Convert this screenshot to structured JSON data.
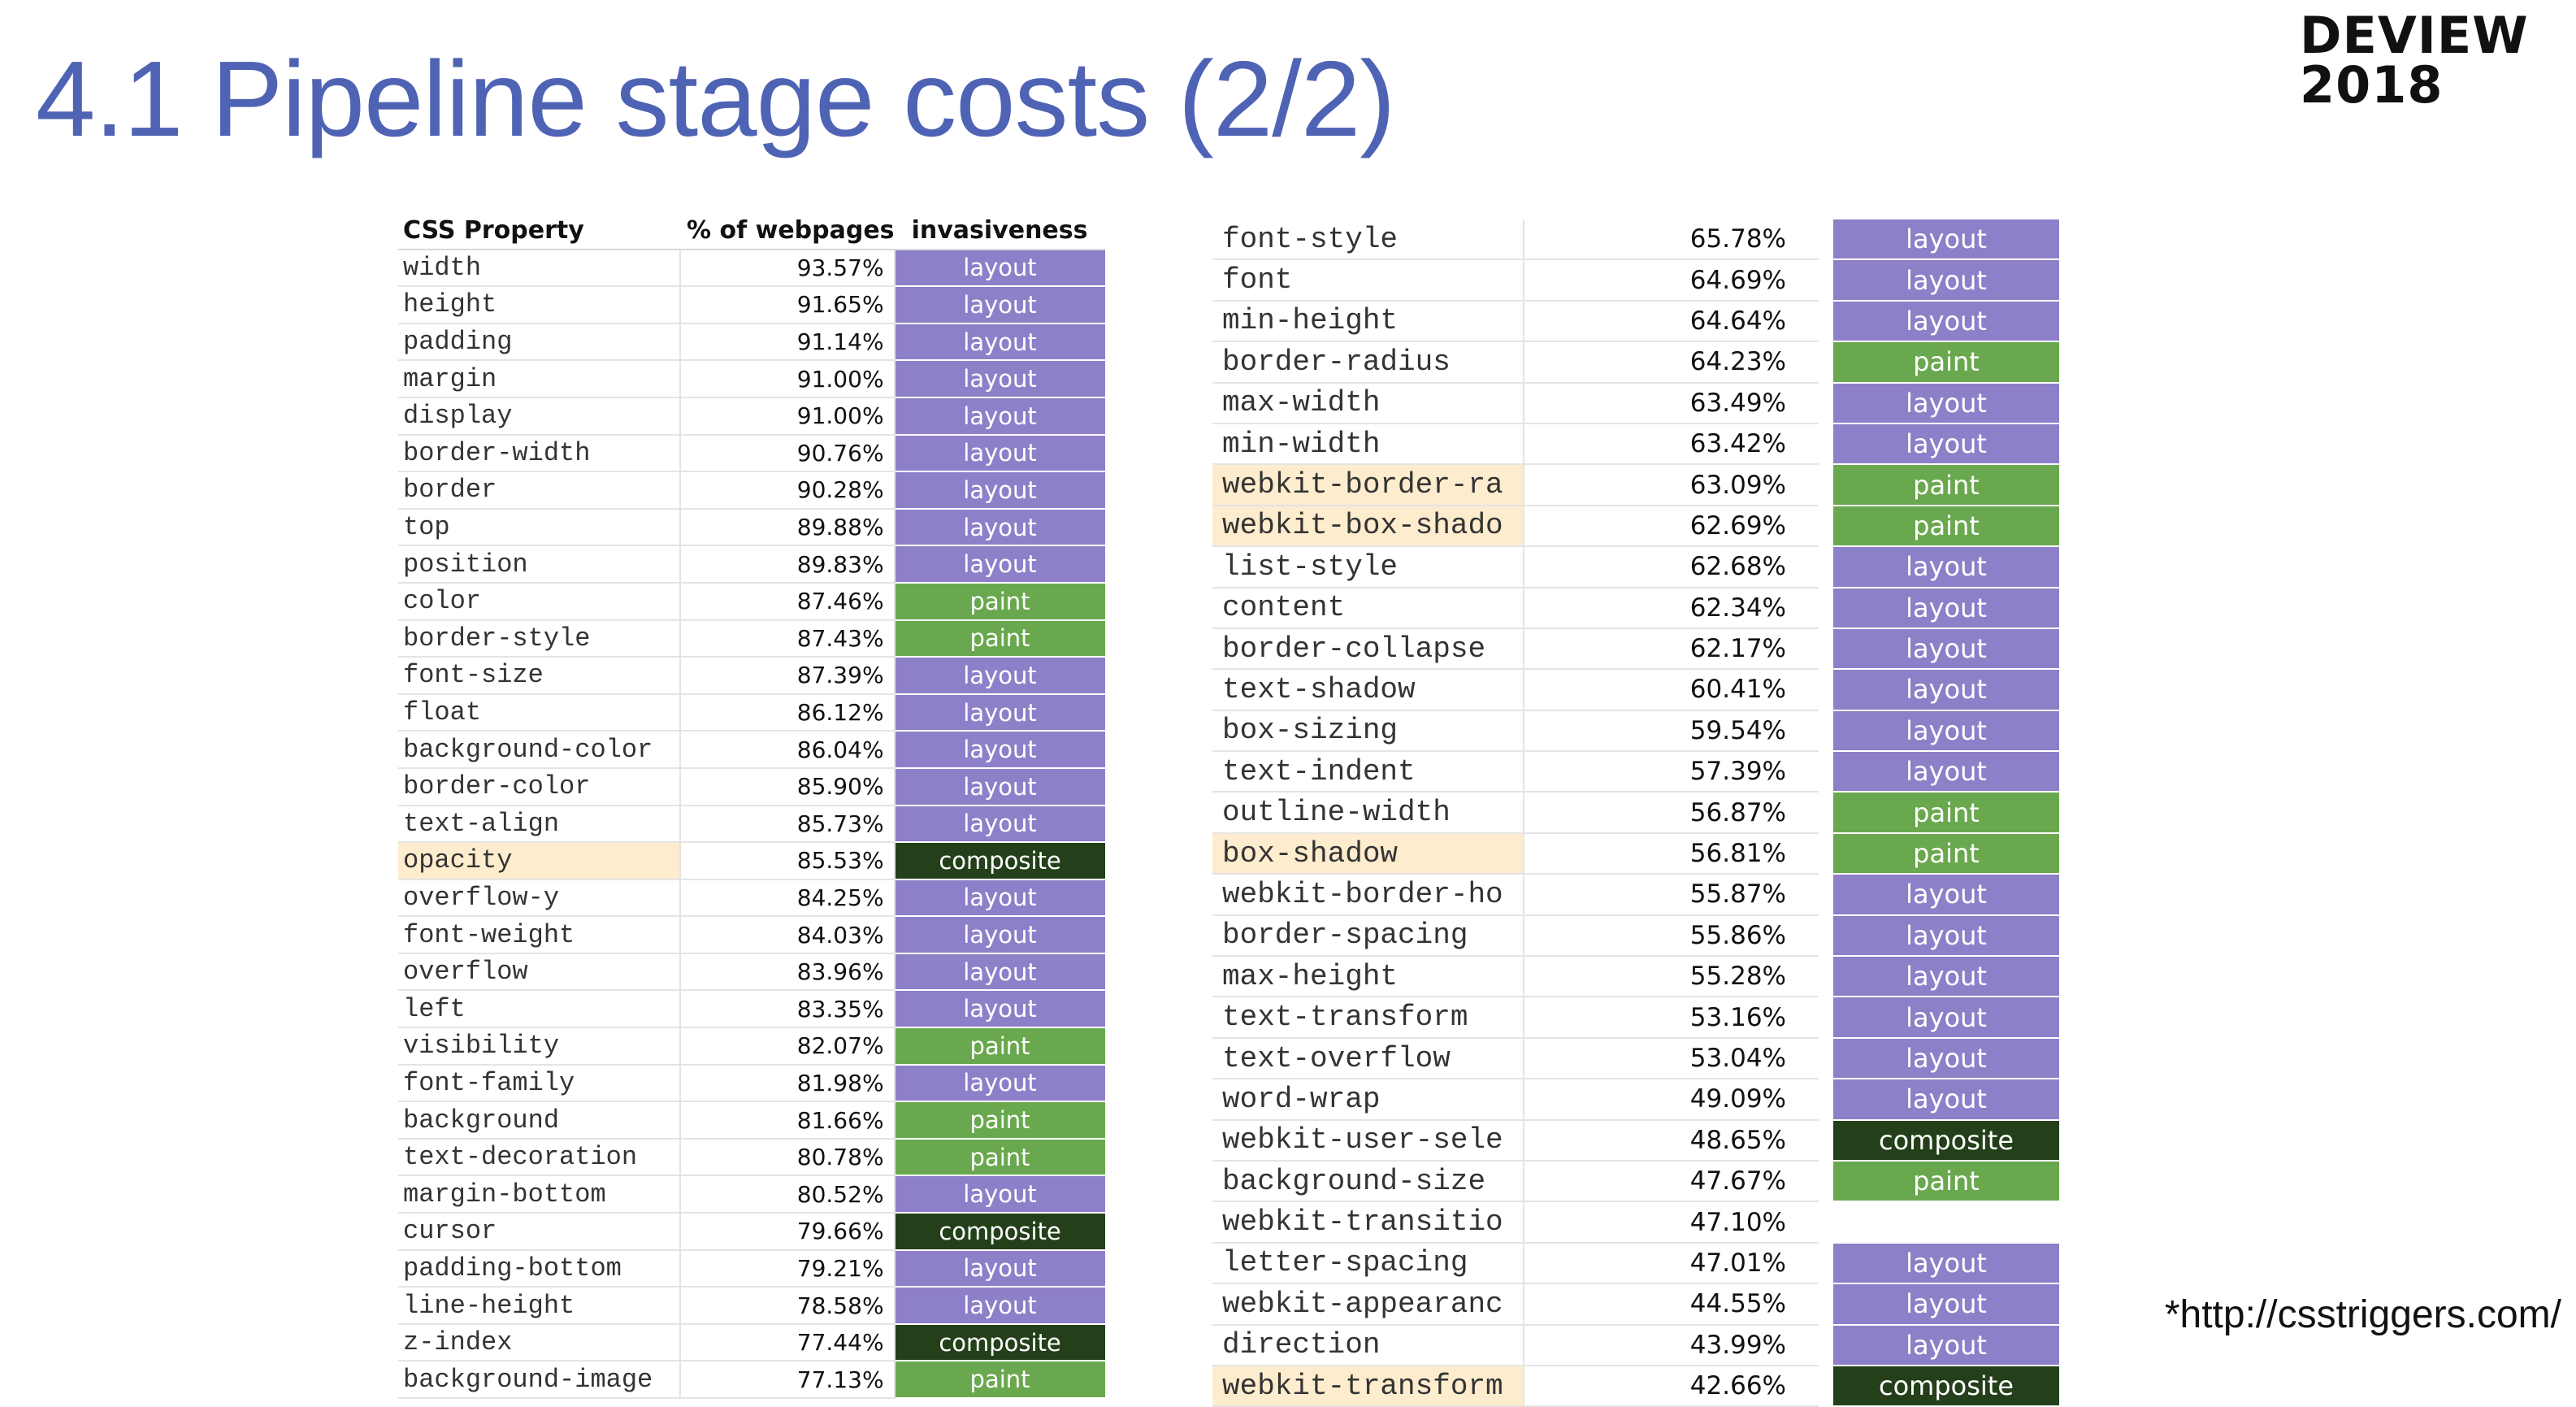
{
  "slide": {
    "title": "4.1 Pipeline stage costs (2/2)",
    "brand_line1": "DEVIEW",
    "brand_line2": "2018",
    "source": "*http://csstriggers.com/"
  },
  "colors": {
    "title": "#4f63b5",
    "layout": "#8e7fc9",
    "paint": "#6aa84f",
    "composite": "#24401a",
    "highlight": "#fdeccd"
  },
  "left_table": {
    "headers": [
      "CSS Property",
      "% of webpages",
      "invasiveness"
    ],
    "rows": [
      {
        "property": "width",
        "percent": "93.57%",
        "invasiveness": "layout"
      },
      {
        "property": "height",
        "percent": "91.65%",
        "invasiveness": "layout"
      },
      {
        "property": "padding",
        "percent": "91.14%",
        "invasiveness": "layout"
      },
      {
        "property": "margin",
        "percent": "91.00%",
        "invasiveness": "layout"
      },
      {
        "property": "display",
        "percent": "91.00%",
        "invasiveness": "layout"
      },
      {
        "property": "border-width",
        "percent": "90.76%",
        "invasiveness": "layout"
      },
      {
        "property": "border",
        "percent": "90.28%",
        "invasiveness": "layout"
      },
      {
        "property": "top",
        "percent": "89.88%",
        "invasiveness": "layout"
      },
      {
        "property": "position",
        "percent": "89.83%",
        "invasiveness": "layout"
      },
      {
        "property": "color",
        "percent": "87.46%",
        "invasiveness": "paint"
      },
      {
        "property": "border-style",
        "percent": "87.43%",
        "invasiveness": "paint"
      },
      {
        "property": "font-size",
        "percent": "87.39%",
        "invasiveness": "layout"
      },
      {
        "property": "float",
        "percent": "86.12%",
        "invasiveness": "layout"
      },
      {
        "property": "background-color",
        "percent": "86.04%",
        "invasiveness": "layout"
      },
      {
        "property": "border-color",
        "percent": "85.90%",
        "invasiveness": "layout"
      },
      {
        "property": "text-align",
        "percent": "85.73%",
        "invasiveness": "layout"
      },
      {
        "property": "opacity",
        "percent": "85.53%",
        "invasiveness": "composite",
        "highlight": true
      },
      {
        "property": "overflow-y",
        "percent": "84.25%",
        "invasiveness": "layout"
      },
      {
        "property": "font-weight",
        "percent": "84.03%",
        "invasiveness": "layout"
      },
      {
        "property": "overflow",
        "percent": "83.96%",
        "invasiveness": "layout"
      },
      {
        "property": "left",
        "percent": "83.35%",
        "invasiveness": "layout"
      },
      {
        "property": "visibility",
        "percent": "82.07%",
        "invasiveness": "paint"
      },
      {
        "property": "font-family",
        "percent": "81.98%",
        "invasiveness": "layout"
      },
      {
        "property": "background",
        "percent": "81.66%",
        "invasiveness": "paint"
      },
      {
        "property": "text-decoration",
        "percent": "80.78%",
        "invasiveness": "paint"
      },
      {
        "property": "margin-bottom",
        "percent": "80.52%",
        "invasiveness": "layout"
      },
      {
        "property": "cursor",
        "percent": "79.66%",
        "invasiveness": "composite"
      },
      {
        "property": "padding-bottom",
        "percent": "79.21%",
        "invasiveness": "layout"
      },
      {
        "property": "line-height",
        "percent": "78.58%",
        "invasiveness": "layout"
      },
      {
        "property": "z-index",
        "percent": "77.44%",
        "invasiveness": "composite"
      },
      {
        "property": "background-image",
        "percent": "77.13%",
        "invasiveness": "paint"
      }
    ]
  },
  "right_table": {
    "rows": [
      {
        "property": "font-style",
        "percent": "65.78%",
        "invasiveness": "layout"
      },
      {
        "property": "font",
        "percent": "64.69%",
        "invasiveness": "layout"
      },
      {
        "property": "min-height",
        "percent": "64.64%",
        "invasiveness": "layout"
      },
      {
        "property": "border-radius",
        "percent": "64.23%",
        "invasiveness": "paint"
      },
      {
        "property": "max-width",
        "percent": "63.49%",
        "invasiveness": "layout"
      },
      {
        "property": "min-width",
        "percent": "63.42%",
        "invasiveness": "layout"
      },
      {
        "property": "webkit-border-ra",
        "percent": "63.09%",
        "invasiveness": "paint",
        "highlight": true
      },
      {
        "property": "webkit-box-shado",
        "percent": "62.69%",
        "invasiveness": "paint",
        "highlight": true
      },
      {
        "property": "list-style",
        "percent": "62.68%",
        "invasiveness": "layout"
      },
      {
        "property": "content",
        "percent": "62.34%",
        "invasiveness": "layout"
      },
      {
        "property": "border-collapse",
        "percent": "62.17%",
        "invasiveness": "layout"
      },
      {
        "property": "text-shadow",
        "percent": "60.41%",
        "invasiveness": "layout"
      },
      {
        "property": "box-sizing",
        "percent": "59.54%",
        "invasiveness": "layout"
      },
      {
        "property": "text-indent",
        "percent": "57.39%",
        "invasiveness": "layout"
      },
      {
        "property": "outline-width",
        "percent": "56.87%",
        "invasiveness": "paint"
      },
      {
        "property": "box-shadow",
        "percent": "56.81%",
        "invasiveness": "paint",
        "highlight": true
      },
      {
        "property": "webkit-border-ho",
        "percent": "55.87%",
        "invasiveness": "layout"
      },
      {
        "property": "border-spacing",
        "percent": "55.86%",
        "invasiveness": "layout"
      },
      {
        "property": "max-height",
        "percent": "55.28%",
        "invasiveness": "layout"
      },
      {
        "property": "text-transform",
        "percent": "53.16%",
        "invasiveness": "layout"
      },
      {
        "property": "text-overflow",
        "percent": "53.04%",
        "invasiveness": "layout"
      },
      {
        "property": "word-wrap",
        "percent": "49.09%",
        "invasiveness": "layout"
      },
      {
        "property": "webkit-user-sele",
        "percent": "48.65%",
        "invasiveness": "composite"
      },
      {
        "property": "background-size",
        "percent": "47.67%",
        "invasiveness": "paint"
      },
      {
        "property": "webkit-transitio",
        "percent": "47.10%",
        "invasiveness": ""
      },
      {
        "property": "letter-spacing",
        "percent": "47.01%",
        "invasiveness": "layout"
      },
      {
        "property": "webkit-appearanc",
        "percent": "44.55%",
        "invasiveness": "layout"
      },
      {
        "property": "direction",
        "percent": "43.99%",
        "invasiveness": "layout"
      },
      {
        "property": "webkit-transform",
        "percent": "42.66%",
        "invasiveness": "composite",
        "highlight": true
      }
    ]
  }
}
